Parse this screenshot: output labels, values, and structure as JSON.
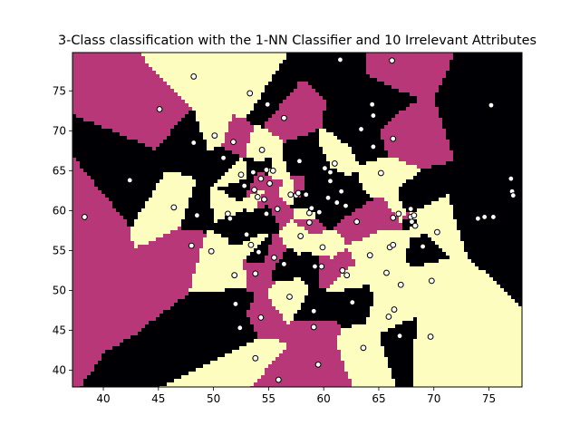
{
  "chart_data": {
    "type": "scatter",
    "subtype": "decision-boundary",
    "title": "3-Class classification with the 1-NN Classifier and 10 Irrelevant Attributes",
    "xlabel": "",
    "ylabel": "",
    "xlim": [
      37.2,
      78.0
    ],
    "ylim": [
      37.9,
      79.8
    ],
    "xticks": [
      40,
      45,
      50,
      55,
      60,
      65,
      70,
      75
    ],
    "yticks": [
      40,
      45,
      50,
      55,
      60,
      65,
      70,
      75
    ],
    "grid": false,
    "legend": "none",
    "class_colors": {
      "0": "#000004",
      "1": "#b73779",
      "2": "#fcfdbf"
    },
    "point_fill": "#ffffff",
    "point_edge": "#000000",
    "points": [
      {
        "x": 38.3,
        "y": 59.2,
        "c": 1
      },
      {
        "x": 42.4,
        "y": 63.8,
        "c": 0
      },
      {
        "x": 45.1,
        "y": 72.7,
        "c": 1
      },
      {
        "x": 46.4,
        "y": 60.4,
        "c": 2
      },
      {
        "x": 48.0,
        "y": 55.6,
        "c": 1
      },
      {
        "x": 48.2,
        "y": 68.5,
        "c": 0
      },
      {
        "x": 48.2,
        "y": 76.8,
        "c": 2
      },
      {
        "x": 48.5,
        "y": 59.4,
        "c": 0
      },
      {
        "x": 49.8,
        "y": 54.9,
        "c": 2
      },
      {
        "x": 50.1,
        "y": 69.4,
        "c": 2
      },
      {
        "x": 50.9,
        "y": 66.6,
        "c": 0
      },
      {
        "x": 51.3,
        "y": 59.6,
        "c": 2
      },
      {
        "x": 51.5,
        "y": 59.0,
        "c": 0
      },
      {
        "x": 51.8,
        "y": 68.6,
        "c": 1
      },
      {
        "x": 51.9,
        "y": 51.9,
        "c": 2
      },
      {
        "x": 52.0,
        "y": 48.3,
        "c": 0
      },
      {
        "x": 52.4,
        "y": 45.3,
        "c": 0
      },
      {
        "x": 52.5,
        "y": 64.5,
        "c": 2
      },
      {
        "x": 52.8,
        "y": 63.1,
        "c": 0
      },
      {
        "x": 53.0,
        "y": 57.0,
        "c": 0
      },
      {
        "x": 53.3,
        "y": 74.7,
        "c": 2
      },
      {
        "x": 53.4,
        "y": 55.7,
        "c": 2
      },
      {
        "x": 53.6,
        "y": 64.8,
        "c": 0
      },
      {
        "x": 53.7,
        "y": 62.6,
        "c": 1
      },
      {
        "x": 53.8,
        "y": 52.1,
        "c": 1
      },
      {
        "x": 53.8,
        "y": 41.5,
        "c": 2
      },
      {
        "x": 54.0,
        "y": 61.7,
        "c": 2
      },
      {
        "x": 54.1,
        "y": 54.8,
        "c": 0
      },
      {
        "x": 54.3,
        "y": 46.6,
        "c": 1
      },
      {
        "x": 54.3,
        "y": 64.0,
        "c": 1
      },
      {
        "x": 54.4,
        "y": 67.6,
        "c": 2
      },
      {
        "x": 54.6,
        "y": 61.4,
        "c": 1
      },
      {
        "x": 54.8,
        "y": 65.1,
        "c": 0
      },
      {
        "x": 54.8,
        "y": 59.6,
        "c": 0
      },
      {
        "x": 54.9,
        "y": 73.3,
        "c": 0
      },
      {
        "x": 55.1,
        "y": 63.4,
        "c": 1
      },
      {
        "x": 55.4,
        "y": 65.0,
        "c": 2
      },
      {
        "x": 55.5,
        "y": 54.1,
        "c": 1
      },
      {
        "x": 55.8,
        "y": 60.2,
        "c": 1
      },
      {
        "x": 55.9,
        "y": 38.8,
        "c": 1
      },
      {
        "x": 56.4,
        "y": 53.3,
        "c": 0
      },
      {
        "x": 56.4,
        "y": 71.6,
        "c": 1
      },
      {
        "x": 56.9,
        "y": 49.2,
        "c": 2
      },
      {
        "x": 57.0,
        "y": 62.0,
        "c": 2
      },
      {
        "x": 57.5,
        "y": 61.9,
        "c": 0
      },
      {
        "x": 57.7,
        "y": 62.2,
        "c": 1
      },
      {
        "x": 57.8,
        "y": 66.2,
        "c": 0
      },
      {
        "x": 57.9,
        "y": 56.8,
        "c": 2
      },
      {
        "x": 58.4,
        "y": 62.0,
        "c": 0
      },
      {
        "x": 58.7,
        "y": 59.7,
        "c": 2
      },
      {
        "x": 58.7,
        "y": 58.5,
        "c": 1
      },
      {
        "x": 58.9,
        "y": 60.3,
        "c": 0
      },
      {
        "x": 59.1,
        "y": 45.4,
        "c": 1
      },
      {
        "x": 59.1,
        "y": 47.4,
        "c": 0
      },
      {
        "x": 59.2,
        "y": 53.0,
        "c": 0
      },
      {
        "x": 59.5,
        "y": 40.7,
        "c": 1
      },
      {
        "x": 59.6,
        "y": 59.8,
        "c": 0
      },
      {
        "x": 59.8,
        "y": 53.0,
        "c": 1
      },
      {
        "x": 59.9,
        "y": 55.4,
        "c": 2
      },
      {
        "x": 60.1,
        "y": 65.3,
        "c": 0
      },
      {
        "x": 60.4,
        "y": 61.6,
        "c": 0
      },
      {
        "x": 60.6,
        "y": 64.8,
        "c": 0
      },
      {
        "x": 60.6,
        "y": 63.7,
        "c": 0
      },
      {
        "x": 61.0,
        "y": 65.9,
        "c": 2
      },
      {
        "x": 61.2,
        "y": 61.0,
        "c": 0
      },
      {
        "x": 61.5,
        "y": 78.9,
        "c": 0
      },
      {
        "x": 61.6,
        "y": 62.4,
        "c": 0
      },
      {
        "x": 61.7,
        "y": 52.5,
        "c": 1
      },
      {
        "x": 62.0,
        "y": 60.6,
        "c": 0
      },
      {
        "x": 62.1,
        "y": 51.9,
        "c": 2
      },
      {
        "x": 62.6,
        "y": 48.5,
        "c": 0
      },
      {
        "x": 63.0,
        "y": 58.6,
        "c": 1
      },
      {
        "x": 63.4,
        "y": 70.2,
        "c": 0
      },
      {
        "x": 63.6,
        "y": 42.8,
        "c": 2
      },
      {
        "x": 64.2,
        "y": 54.4,
        "c": 2
      },
      {
        "x": 64.4,
        "y": 73.3,
        "c": 0
      },
      {
        "x": 64.5,
        "y": 71.9,
        "c": 0
      },
      {
        "x": 64.5,
        "y": 68.0,
        "c": 0
      },
      {
        "x": 65.2,
        "y": 64.7,
        "c": 2
      },
      {
        "x": 65.7,
        "y": 52.2,
        "c": 2
      },
      {
        "x": 65.9,
        "y": 46.7,
        "c": 2
      },
      {
        "x": 66.0,
        "y": 55.4,
        "c": 2
      },
      {
        "x": 66.2,
        "y": 78.8,
        "c": 1
      },
      {
        "x": 66.3,
        "y": 69.0,
        "c": 1
      },
      {
        "x": 66.3,
        "y": 59.1,
        "c": 1
      },
      {
        "x": 66.3,
        "y": 55.7,
        "c": 2
      },
      {
        "x": 66.4,
        "y": 47.6,
        "c": 2
      },
      {
        "x": 66.8,
        "y": 59.6,
        "c": 2
      },
      {
        "x": 66.9,
        "y": 44.3,
        "c": 0
      },
      {
        "x": 67.0,
        "y": 50.7,
        "c": 2
      },
      {
        "x": 67.9,
        "y": 60.2,
        "c": 0
      },
      {
        "x": 67.9,
        "y": 59.2,
        "c": 1
      },
      {
        "x": 68.0,
        "y": 58.6,
        "c": 0
      },
      {
        "x": 68.2,
        "y": 59.4,
        "c": 2
      },
      {
        "x": 68.3,
        "y": 58.1,
        "c": 2
      },
      {
        "x": 69.0,
        "y": 55.5,
        "c": 0
      },
      {
        "x": 69.7,
        "y": 44.2,
        "c": 2
      },
      {
        "x": 69.8,
        "y": 51.2,
        "c": 2
      },
      {
        "x": 70.3,
        "y": 57.3,
        "c": 2
      },
      {
        "x": 74.0,
        "y": 59.0,
        "c": 0
      },
      {
        "x": 74.6,
        "y": 59.2,
        "c": 0
      },
      {
        "x": 75.2,
        "y": 73.2,
        "c": 0
      },
      {
        "x": 75.4,
        "y": 59.2,
        "c": 0
      },
      {
        "x": 77.0,
        "y": 64.0,
        "c": 0
      },
      {
        "x": 77.1,
        "y": 62.4,
        "c": 0
      },
      {
        "x": 77.2,
        "y": 61.9,
        "c": 0
      }
    ]
  }
}
